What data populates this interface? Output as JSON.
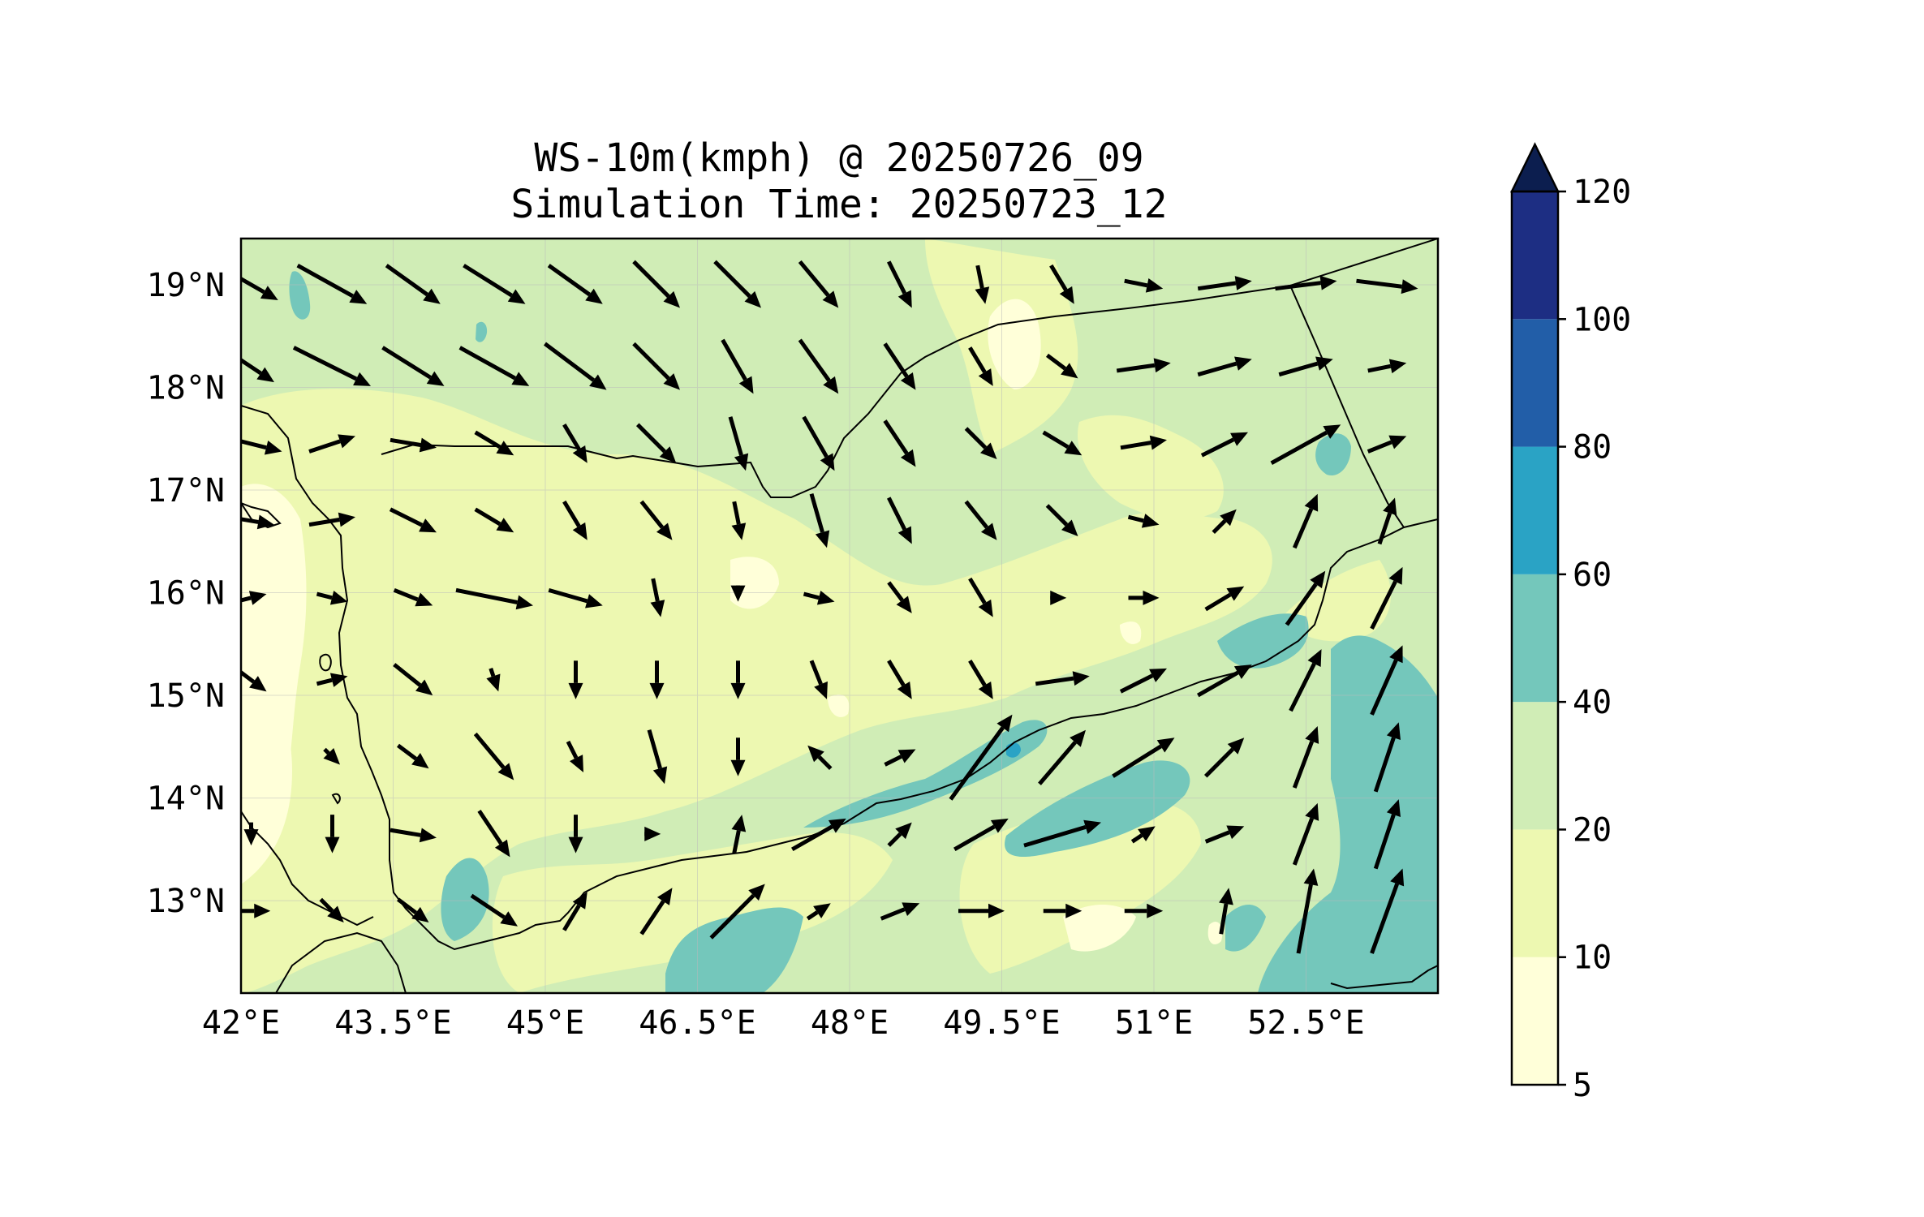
{
  "title": {
    "line1": "WS-10m(kmph) @ 20250726_09",
    "line2": "Simulation Time: 20250723_12"
  },
  "map": {
    "lon_range": [
      42.0,
      53.8
    ],
    "lat_range": [
      12.1,
      19.45
    ],
    "lon_ticks": [
      {
        "value": 42.0,
        "label": "42°E"
      },
      {
        "value": 43.5,
        "label": "43.5°E"
      },
      {
        "value": 45.0,
        "label": "45°E"
      },
      {
        "value": 46.5,
        "label": "46.5°E"
      },
      {
        "value": 48.0,
        "label": "48°E"
      },
      {
        "value": 49.5,
        "label": "49.5°E"
      },
      {
        "value": 51.0,
        "label": "51°E"
      },
      {
        "value": 52.5,
        "label": "52.5°E"
      }
    ],
    "lat_ticks": [
      {
        "value": 19,
        "label": "19°N"
      },
      {
        "value": 18,
        "label": "18°N"
      },
      {
        "value": 17,
        "label": "17°N"
      },
      {
        "value": 16,
        "label": "16°N"
      },
      {
        "value": 15,
        "label": "15°N"
      },
      {
        "value": 14,
        "label": "14°N"
      },
      {
        "value": 13,
        "label": "13°N"
      }
    ],
    "field_colors": {
      "5-10": "#ffffd9",
      "10-20": "#edf8b1",
      "20-40": "#d0edb6",
      "40-60": "#74c7bb",
      "60-80": "#2aa3c5",
      "80-100": "#225ea8",
      "100-120": "#1d2e83",
      "over": "#0c1e4f"
    }
  },
  "colorbar": {
    "levels": [
      "5",
      "10",
      "20",
      "40",
      "60",
      "80",
      "100",
      "120"
    ],
    "colors": [
      "#ffffd9",
      "#edf8b1",
      "#d0edb6",
      "#74c7bb",
      "#2aa3c5",
      "#225ea8",
      "#1d2e83"
    ],
    "extend_color": "#0c1e4f",
    "extend": "max"
  },
  "chart_data": {
    "type": "heatmap",
    "variable": "WS-10m(kmph)",
    "valid_time": "20250726_09",
    "simulation_time": "20250723_12",
    "x_axis": "longitude",
    "y_axis": "latitude",
    "xlim": [
      42.0,
      53.8
    ],
    "ylim": [
      12.1,
      19.45
    ],
    "contour_levels": [
      5,
      10,
      20,
      40,
      60,
      80,
      100,
      120
    ],
    "colorbar_extend": "max",
    "wind_vectors": {
      "lon": [
        42.1,
        42.9,
        43.7,
        44.5,
        45.3,
        46.1,
        46.9,
        47.7,
        48.5,
        49.3,
        50.1,
        50.9,
        51.7,
        52.5,
        53.3
      ],
      "lat": [
        19.0,
        18.2,
        17.45,
        16.7,
        15.95,
        15.15,
        14.4,
        13.65,
        12.9
      ],
      "rows": [
        [
          [
            7,
            -4
          ],
          [
            9,
            -5
          ],
          [
            7,
            -5
          ],
          [
            8,
            -5
          ],
          [
            7,
            -5
          ],
          [
            6,
            -6
          ],
          [
            6,
            -6
          ],
          [
            5,
            -6
          ],
          [
            3,
            -6
          ],
          [
            1,
            -5
          ],
          [
            3,
            -5
          ],
          [
            5,
            -1
          ],
          [
            7,
            1
          ],
          [
            8,
            1
          ],
          [
            8,
            -1
          ]
        ],
        [
          [
            6,
            -4
          ],
          [
            10,
            -5
          ],
          [
            8,
            -5
          ],
          [
            9,
            -5
          ],
          [
            8,
            -6
          ],
          [
            6,
            -6
          ],
          [
            4,
            -7
          ],
          [
            5,
            -7
          ],
          [
            4,
            -6
          ],
          [
            3,
            -5
          ],
          [
            4,
            -3
          ],
          [
            7,
            1
          ],
          [
            7,
            2
          ],
          [
            7,
            2
          ],
          [
            5,
            1
          ]
        ],
        [
          [
            8,
            -2
          ],
          [
            6,
            2
          ],
          [
            6,
            -1
          ],
          [
            5,
            -3
          ],
          [
            3,
            -5
          ],
          [
            5,
            -5
          ],
          [
            2,
            -7
          ],
          [
            4,
            -7
          ],
          [
            4,
            -6
          ],
          [
            4,
            -4
          ],
          [
            5,
            -3
          ],
          [
            6,
            1
          ],
          [
            6,
            3
          ],
          [
            9,
            5
          ],
          [
            5,
            2
          ]
        ],
        [
          [
            6,
            -1
          ],
          [
            6,
            1
          ],
          [
            6,
            -3
          ],
          [
            5,
            -3
          ],
          [
            3,
            -5
          ],
          [
            4,
            -5
          ],
          [
            1,
            -5
          ],
          [
            2,
            -7
          ],
          [
            3,
            -6
          ],
          [
            4,
            -5
          ],
          [
            4,
            -4
          ],
          [
            4,
            -1
          ],
          [
            3,
            3
          ],
          [
            3,
            7
          ],
          [
            2,
            6
          ]
        ],
        [
          [
            4,
            1
          ],
          [
            4,
            -1
          ],
          [
            5,
            -2
          ],
          [
            10,
            -2
          ],
          [
            7,
            -2
          ],
          [
            1,
            -5
          ],
          [
            0,
            -1
          ],
          [
            4,
            -1
          ],
          [
            3,
            -4
          ],
          [
            3,
            -5
          ],
          [
            1,
            0
          ],
          [
            4,
            0
          ],
          [
            5,
            3
          ],
          [
            5,
            7
          ],
          [
            4,
            8
          ]
        ],
        [
          [
            4,
            -3
          ],
          [
            4,
            1
          ],
          [
            5,
            -4
          ],
          [
            1,
            -3
          ],
          [
            0,
            -5
          ],
          [
            0,
            -5
          ],
          [
            0,
            -5
          ],
          [
            2,
            -5
          ],
          [
            3,
            -5
          ],
          [
            3,
            -5
          ],
          [
            7,
            1
          ],
          [
            6,
            3
          ],
          [
            7,
            4
          ],
          [
            4,
            8
          ],
          [
            4,
            9
          ]
        ],
        [
          [
            0,
            0
          ],
          [
            2,
            -2
          ],
          [
            4,
            -3
          ],
          [
            5,
            -6
          ],
          [
            2,
            -4
          ],
          [
            2,
            -7
          ],
          [
            0,
            -5
          ],
          [
            -3,
            3
          ],
          [
            4,
            2
          ],
          [
            8,
            11
          ],
          [
            6,
            7
          ],
          [
            8,
            5
          ],
          [
            5,
            5
          ],
          [
            3,
            8
          ],
          [
            3,
            9
          ]
        ],
        [
          [
            0,
            -3
          ],
          [
            0,
            -5
          ],
          [
            6,
            -1
          ],
          [
            4,
            -6
          ],
          [
            0,
            -5
          ],
          [
            1,
            0
          ],
          [
            1,
            5
          ],
          [
            7,
            4
          ],
          [
            3,
            3
          ],
          [
            7,
            4
          ],
          [
            10,
            3
          ],
          [
            3,
            2
          ],
          [
            5,
            2
          ],
          [
            3,
            8
          ],
          [
            3,
            9
          ]
        ],
        [
          [
            5,
            0
          ],
          [
            3,
            -3
          ],
          [
            4,
            -3
          ],
          [
            6,
            -4
          ],
          [
            3,
            5
          ],
          [
            4,
            6
          ],
          [
            7,
            7
          ],
          [
            3,
            2
          ],
          [
            5,
            2
          ],
          [
            6,
            0
          ],
          [
            5,
            0
          ],
          [
            5,
            0
          ],
          [
            1,
            6
          ],
          [
            2,
            11
          ],
          [
            4,
            11
          ]
        ]
      ]
    }
  }
}
